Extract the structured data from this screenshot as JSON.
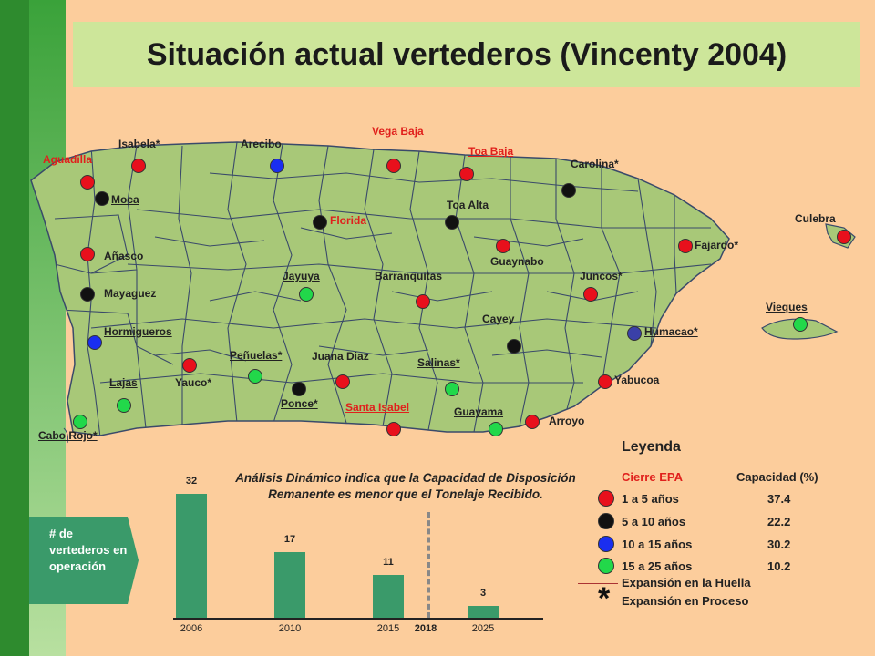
{
  "title": "Situación  actual vertederos (Vincenty 2004)",
  "colors": {
    "red": "#e8101c",
    "black": "#111111",
    "blue": "#1a2ef0",
    "green": "#22d84a",
    "navy": "#3a40a8",
    "land": "#a8c878",
    "background": "#fccd9c"
  },
  "map_labels": [
    {
      "text": "Aguadilla",
      "style": "red"
    },
    {
      "text": "Isabela*",
      "style": "plain"
    },
    {
      "text": "Arecibo",
      "style": "plain"
    },
    {
      "text": "Vega Baja",
      "style": "red"
    },
    {
      "text": "Toa Baja",
      "style": "red-ul"
    },
    {
      "text": "Carolina*",
      "style": "ul"
    },
    {
      "text": "Moca",
      "style": "ul"
    },
    {
      "text": "Florida",
      "style": "red"
    },
    {
      "text": "Toa Alta",
      "style": "ul"
    },
    {
      "text": "Culebra",
      "style": "plain"
    },
    {
      "text": "Añasco",
      "style": "plain"
    },
    {
      "text": "Guaynabo",
      "style": "plain"
    },
    {
      "text": "Fajardo*",
      "style": "plain"
    },
    {
      "text": "Jayuya",
      "style": "ul"
    },
    {
      "text": "Barranquitas",
      "style": "plain"
    },
    {
      "text": "Juncos*",
      "style": "plain"
    },
    {
      "text": "Mayaguez",
      "style": "plain"
    },
    {
      "text": "Vieques",
      "style": "ul"
    },
    {
      "text": "Cayey",
      "style": "plain"
    },
    {
      "text": "Hormigueros",
      "style": "ul"
    },
    {
      "text": "Humacao*",
      "style": "ul"
    },
    {
      "text": "Peñuelas*",
      "style": "ul"
    },
    {
      "text": "Juana Diaz",
      "style": "plain"
    },
    {
      "text": "Salinas*",
      "style": "ul"
    },
    {
      "text": "Lajas",
      "style": "ul"
    },
    {
      "text": "Yauco*",
      "style": "plain"
    },
    {
      "text": "Yabucoa",
      "style": "plain"
    },
    {
      "text": "Ponce*",
      "style": "ul"
    },
    {
      "text": "Santa Isabel",
      "style": "red-ul"
    },
    {
      "text": "Guayama",
      "style": "ul"
    },
    {
      "text": "Arroyo",
      "style": "plain"
    },
    {
      "text": "Cabo Rojo*",
      "style": "ul"
    }
  ],
  "landfills": [
    {
      "name": "Aguadilla",
      "category": "red"
    },
    {
      "name": "Isabela",
      "category": "red"
    },
    {
      "name": "Arecibo",
      "category": "blue"
    },
    {
      "name": "Vega Baja",
      "category": "red"
    },
    {
      "name": "Toa Baja",
      "category": "red"
    },
    {
      "name": "Carolina",
      "category": "black"
    },
    {
      "name": "Moca",
      "category": "black"
    },
    {
      "name": "Florida",
      "category": "black"
    },
    {
      "name": "Toa Alta",
      "category": "black"
    },
    {
      "name": "Culebra",
      "category": "red"
    },
    {
      "name": "Añasco",
      "category": "red"
    },
    {
      "name": "Guaynabo",
      "category": "red"
    },
    {
      "name": "Fajardo",
      "category": "red"
    },
    {
      "name": "Jayuya",
      "category": "green"
    },
    {
      "name": "Barranquitas",
      "category": "red"
    },
    {
      "name": "Juncos",
      "category": "red"
    },
    {
      "name": "Mayaguez",
      "category": "black"
    },
    {
      "name": "Vieques",
      "category": "green"
    },
    {
      "name": "Cayey",
      "category": "black"
    },
    {
      "name": "Hormigueros",
      "category": "blue"
    },
    {
      "name": "Humacao",
      "category": "navy"
    },
    {
      "name": "Peñuelas",
      "category": "green"
    },
    {
      "name": "Juana Diaz",
      "category": "red"
    },
    {
      "name": "Salinas",
      "category": "green"
    },
    {
      "name": "Lajas",
      "category": "green"
    },
    {
      "name": "Yauco",
      "category": "red"
    },
    {
      "name": "Yabucoa",
      "category": "red"
    },
    {
      "name": "Ponce",
      "category": "black"
    },
    {
      "name": "Santa Isabel",
      "category": "red"
    },
    {
      "name": "Guayama",
      "category": "green"
    },
    {
      "name": "Arroyo",
      "category": "red"
    },
    {
      "name": "Cabo Rojo",
      "category": "green"
    }
  ],
  "chart_data": {
    "type": "bar",
    "title": "Análisis Dinámico indica que la Capacidad de Disposición Remanente es menor que el Tonelaje Recibido.",
    "ylabel": "# de vertederos en operación",
    "x": [
      2006,
      2010,
      2015,
      2025
    ],
    "values": [
      32,
      17,
      11,
      3
    ],
    "x_labels": [
      "2006",
      "2010",
      "2015",
      "2025"
    ],
    "marker": {
      "x": 2018,
      "label": "2018",
      "style": "dashed vertical line"
    },
    "ylim": [
      0,
      32
    ]
  },
  "ops_label": "# de vertederos en operación",
  "legend": {
    "title": "Leyenda",
    "col1": "Cierre EPA",
    "col2": "Capacidad (%)",
    "rows": [
      {
        "label": "1 a 5 años",
        "value": "37.4",
        "color": "#e8101c"
      },
      {
        "label": "5 a 10 años",
        "value": "22.2",
        "color": "#111111"
      },
      {
        "label": "10 a 15 años",
        "value": "30.2",
        "color": "#1a2ef0"
      },
      {
        "label": "15 a 25 años",
        "value": "10.2",
        "color": "#22d84a"
      }
    ],
    "expansion_footprint": "Expansión en la Huella",
    "expansion_star": "*",
    "expansion_process": "Expansión en Proceso"
  }
}
